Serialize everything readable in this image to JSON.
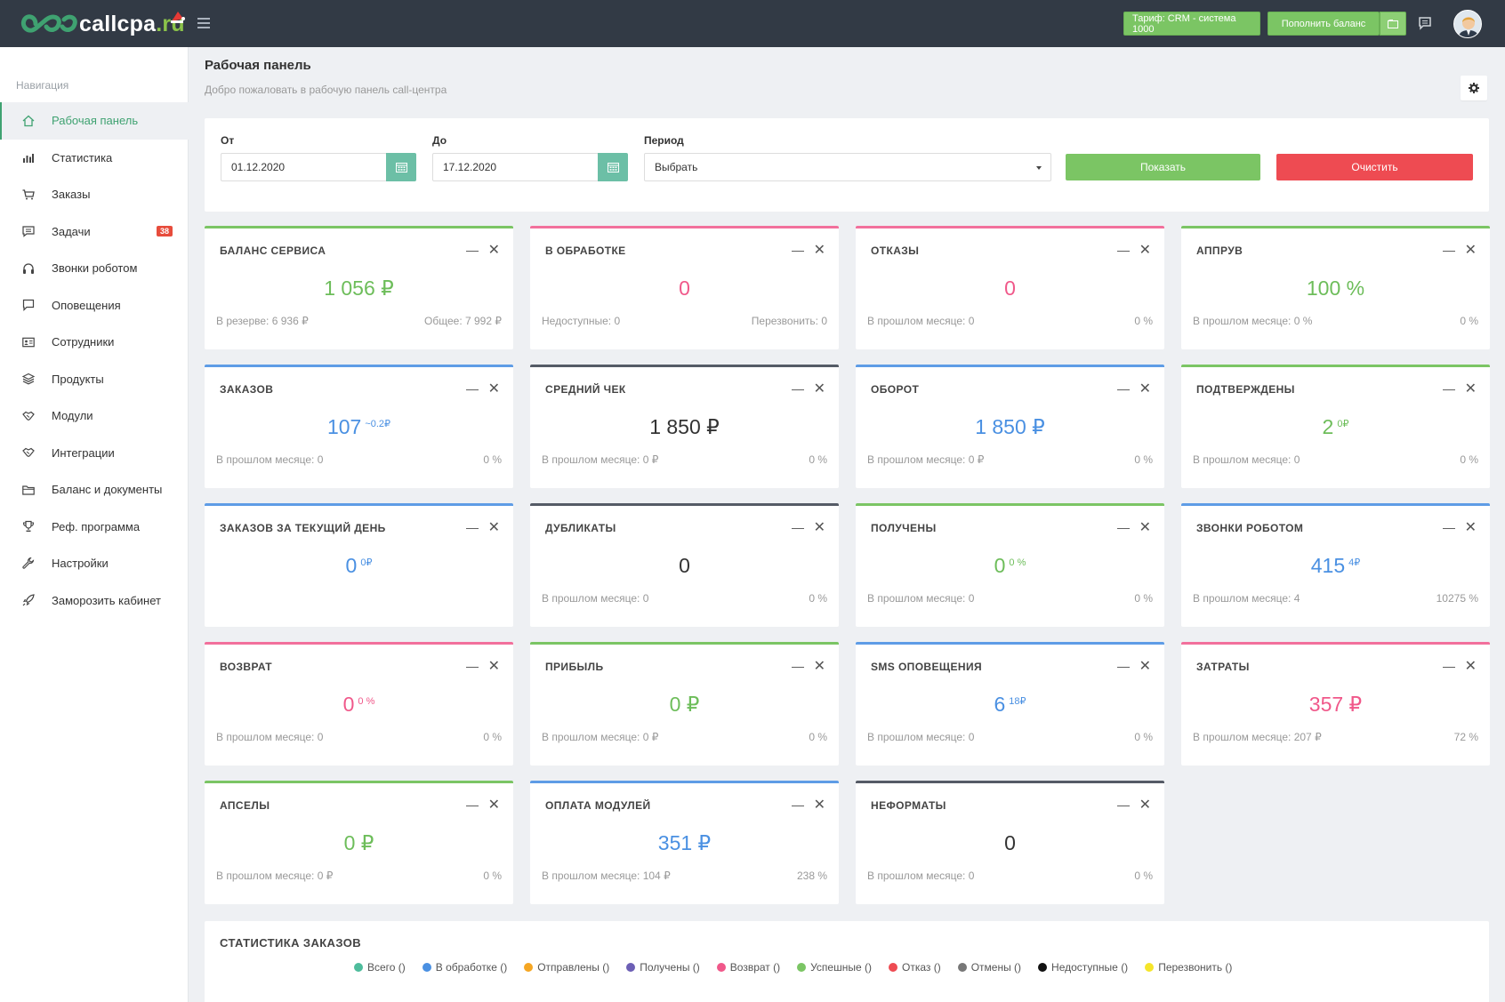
{
  "header": {
    "logo_text": "callcpa",
    "logo_suffix": ".ru",
    "tariff_label": "Тариф: CRM - система 1000",
    "topup_label": "Пополнить баланс"
  },
  "sidebar": {
    "heading": "Навигация",
    "items": [
      {
        "label": "Рабочая панель",
        "icon": "home-icon"
      },
      {
        "label": "Статистика",
        "icon": "bar-chart-icon"
      },
      {
        "label": "Заказы",
        "icon": "cart-icon"
      },
      {
        "label": "Задачи",
        "icon": "comment-icon",
        "badge": "38"
      },
      {
        "label": "Звонки роботом",
        "icon": "headphones-icon"
      },
      {
        "label": "Оповещения",
        "icon": "message-icon"
      },
      {
        "label": "Сотрудники",
        "icon": "id-card-icon"
      },
      {
        "label": "Продукты",
        "icon": "layers-icon"
      },
      {
        "label": "Модули",
        "icon": "handshake-icon"
      },
      {
        "label": "Интеграции",
        "icon": "handshake-icon"
      },
      {
        "label": "Баланс и документы",
        "icon": "folder-icon"
      },
      {
        "label": "Реф. программа",
        "icon": "trophy-icon"
      },
      {
        "label": "Настройки",
        "icon": "wrench-icon"
      },
      {
        "label": "Заморозить кабинет",
        "icon": "rocket-icon"
      }
    ]
  },
  "page": {
    "title": "Рабочая панель",
    "subtitle": "Добро пожаловать в рабочую панель call-центра"
  },
  "filter": {
    "from_label": "От",
    "from_value": "01.12.2020",
    "to_label": "До",
    "to_value": "17.12.2020",
    "period_label": "Период",
    "period_value": "Выбрать",
    "show_label": "Показать",
    "clear_label": "Очистить"
  },
  "cards": [
    {
      "title": "БАЛАНС СЕРВИСА",
      "value": "1 056 ₽",
      "sup": "",
      "left": "В резерве: 6 936 ₽",
      "right": "Общее: 7 992 ₽",
      "color": "green"
    },
    {
      "title": "В ОБРАБОТКЕ",
      "value": "0",
      "sup": "",
      "left": "Недоступные: 0",
      "right": "Перезвонить: 0",
      "color": "pink"
    },
    {
      "title": "ОТКАЗЫ",
      "value": "0",
      "sup": "",
      "left": "В прошлом месяце: 0",
      "right": "0 %",
      "color": "pink"
    },
    {
      "title": "АППРУВ",
      "value": "100 %",
      "sup": "",
      "left": "В прошлом месяце: 0 %",
      "right": "0 %",
      "color": "green"
    },
    {
      "title": "ЗАКАЗОВ",
      "value": "107",
      "sup": "~0.2₽",
      "left": "В прошлом месяце: 0",
      "right": "0 %",
      "color": "blue"
    },
    {
      "title": "СРЕДНИЙ ЧЕК",
      "value": "1 850 ₽",
      "sup": "",
      "left": "В прошлом месяце: 0 ₽",
      "right": "0 %",
      "color": "dark"
    },
    {
      "title": "ОБОРОТ",
      "value": "1 850 ₽",
      "sup": "",
      "left": "В прошлом месяце: 0 ₽",
      "right": "0 %",
      "color": "blue"
    },
    {
      "title": "ПОДТВЕРЖДЕНЫ",
      "value": "2",
      "sup": "0₽",
      "left": "В прошлом месяце: 0",
      "right": "0 %",
      "color": "green"
    },
    {
      "title": "ЗАКАЗОВ ЗА ТЕКУЩИЙ ДЕНЬ",
      "value": "0",
      "sup": "0₽",
      "left": "",
      "right": "",
      "color": "blue"
    },
    {
      "title": "ДУБЛИКАТЫ",
      "value": "0",
      "sup": "",
      "left": "В прошлом месяце: 0",
      "right": "0 %",
      "color": "dark"
    },
    {
      "title": "ПОЛУЧЕНЫ",
      "value": "0",
      "sup": "0 %",
      "left": "В прошлом месяце: 0",
      "right": "0 %",
      "color": "green"
    },
    {
      "title": "ЗВОНКИ РОБОТОМ",
      "value": "415",
      "sup": "4₽",
      "left": "В прошлом месяце: 4",
      "right": "10275 %",
      "color": "blue"
    },
    {
      "title": "ВОЗВРАТ",
      "value": "0",
      "sup": "0 %",
      "left": "В прошлом месяце: 0",
      "right": "0 %",
      "color": "pink"
    },
    {
      "title": "ПРИБЫЛЬ",
      "value": "0 ₽",
      "sup": "",
      "left": "В прошлом месяце: 0 ₽",
      "right": "0 %",
      "color": "green"
    },
    {
      "title": "SMS ОПОВЕЩЕНИЯ",
      "value": "6",
      "sup": "18₽",
      "left": "В прошлом месяце: 0",
      "right": "0 %",
      "color": "blue"
    },
    {
      "title": "ЗАТРАТЫ",
      "value": "357 ₽",
      "sup": "",
      "left": "В прошлом месяце: 207 ₽",
      "right": "72 %",
      "color": "pink"
    },
    {
      "title": "АПСЕЛЫ",
      "value": "0 ₽",
      "sup": "",
      "left": "В прошлом месяце: 0 ₽",
      "right": "0 %",
      "color": "green"
    },
    {
      "title": "ОПЛАТА МОДУЛЕЙ",
      "value": "351 ₽",
      "sup": "",
      "left": "В прошлом месяце: 104 ₽",
      "right": "238 %",
      "color": "blue"
    },
    {
      "title": "НЕФОРМАТЫ",
      "value": "0",
      "sup": "",
      "left": "В прошлом месяце: 0",
      "right": "0 %",
      "color": "dark"
    }
  ],
  "stats": {
    "title": "СТАТИСТИКА ЗАКАЗОВ",
    "legend": [
      {
        "label": "Всего ()",
        "color": "#4ebc9c"
      },
      {
        "label": "В обработке ()",
        "color": "#4a90e2"
      },
      {
        "label": "Отправлены ()",
        "color": "#f5a623"
      },
      {
        "label": "Получены ()",
        "color": "#6c5fb5"
      },
      {
        "label": "Возврат ()",
        "color": "#f0588a"
      },
      {
        "label": "Успешные ()",
        "color": "#7bc564"
      },
      {
        "label": "Отказ ()",
        "color": "#ee4b52"
      },
      {
        "label": "Отмены ()",
        "color": "#777777"
      },
      {
        "label": "Недоступные ()",
        "color": "#111111"
      },
      {
        "label": "Перезвонить ()",
        "color": "#f5e52a"
      }
    ]
  }
}
